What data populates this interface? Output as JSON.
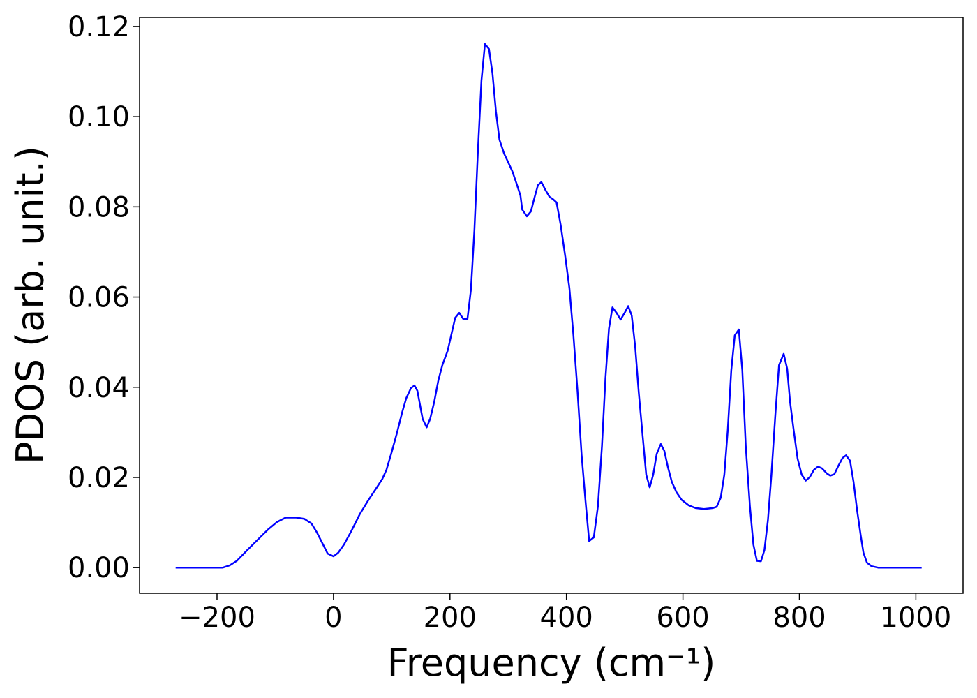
{
  "chart_data": {
    "type": "line",
    "xlabel": "Frequency (cm⁻¹)",
    "ylabel": "PDOS (arb. unit.)",
    "xlim": [
      -333,
      1081
    ],
    "ylim": [
      -0.0057,
      0.122
    ],
    "xticks": [
      {
        "value": -200,
        "label": "−200"
      },
      0,
      200,
      400,
      600,
      800,
      1000
    ],
    "yticks": [
      {
        "value": 0,
        "label": "0.00"
      },
      0.02,
      0.04,
      0.06,
      0.08,
      {
        "value": 0.1,
        "label": "0.10"
      },
      0.12
    ],
    "grid": false,
    "series": [
      {
        "name": "PDOS",
        "color": "#0000ff",
        "x": [
          -271,
          -190,
          -178,
          -166,
          -148,
          -130,
          -112,
          -97,
          -82,
          -64,
          -50,
          -38,
          -29,
          -19,
          -10,
          0,
          8,
          18,
          31,
          45,
          60,
          73,
          84,
          91,
          99,
          109,
          118,
          125,
          133,
          139,
          144,
          153,
          160,
          166,
          173,
          180,
          187,
          196,
          202,
          209,
          216,
          223,
          230,
          236,
          242,
          248,
          254,
          260,
          267,
          273,
          279,
          285,
          293,
          300,
          307,
          314,
          321,
          324,
          332,
          339,
          345,
          351,
          357,
          364,
          371,
          377,
          383,
          390,
          398,
          405,
          412,
          419,
          426,
          433,
          439,
          447,
          454,
          461,
          467,
          473,
          479,
          486,
          493,
          500,
          506,
          512,
          518,
          524,
          531,
          537,
          543,
          549,
          555,
          562,
          568,
          574,
          581,
          589,
          598,
          610,
          622,
          636,
          651,
          658,
          665,
          671,
          677,
          683,
          689,
          696,
          702,
          708,
          715,
          721,
          727,
          734,
          740,
          746,
          752,
          759,
          765,
          773,
          779,
          784,
          790,
          797,
          804,
          811,
          818,
          825,
          832,
          839,
          847,
          853,
          860,
          867,
          874,
          880,
          887,
          893,
          899,
          905,
          910,
          916,
          924,
          935,
          1010
        ],
        "values": [
          0,
          0,
          0.0005,
          0.0015,
          0.0039,
          0.0062,
          0.0085,
          0.0101,
          0.0111,
          0.0111,
          0.0108,
          0.0098,
          0.0079,
          0.0054,
          0.0031,
          0.0025,
          0.0033,
          0.0051,
          0.0082,
          0.0118,
          0.015,
          0.0175,
          0.0197,
          0.0217,
          0.0252,
          0.0299,
          0.0345,
          0.0376,
          0.0398,
          0.0404,
          0.0392,
          0.033,
          0.0311,
          0.033,
          0.0368,
          0.0415,
          0.0449,
          0.0481,
          0.0515,
          0.0554,
          0.0565,
          0.0551,
          0.0551,
          0.0616,
          0.0748,
          0.0926,
          0.108,
          0.1161,
          0.115,
          0.1096,
          0.1011,
          0.0949,
          0.0918,
          0.0899,
          0.0879,
          0.0853,
          0.0825,
          0.0794,
          0.0779,
          0.079,
          0.082,
          0.0848,
          0.0855,
          0.0837,
          0.0822,
          0.0817,
          0.081,
          0.076,
          0.069,
          0.062,
          0.0515,
          0.039,
          0.025,
          0.0144,
          0.0059,
          0.0067,
          0.0136,
          0.027,
          0.042,
          0.053,
          0.0577,
          0.0565,
          0.055,
          0.0565,
          0.058,
          0.0559,
          0.049,
          0.039,
          0.029,
          0.0206,
          0.0178,
          0.0206,
          0.0252,
          0.0274,
          0.0259,
          0.0224,
          0.019,
          0.0167,
          0.015,
          0.0138,
          0.0132,
          0.013,
          0.0132,
          0.0135,
          0.0155,
          0.0206,
          0.0306,
          0.0438,
          0.0515,
          0.0528,
          0.0438,
          0.0268,
          0.0136,
          0.0051,
          0.0015,
          0.0014,
          0.0039,
          0.0105,
          0.0206,
          0.0345,
          0.0449,
          0.0474,
          0.0441,
          0.0368,
          0.0306,
          0.0241,
          0.0206,
          0.0193,
          0.0201,
          0.0217,
          0.0224,
          0.022,
          0.0209,
          0.0204,
          0.0207,
          0.0226,
          0.0243,
          0.0249,
          0.0237,
          0.019,
          0.0128,
          0.0074,
          0.0033,
          0.0011,
          0.0003,
          0,
          0
        ]
      }
    ]
  }
}
